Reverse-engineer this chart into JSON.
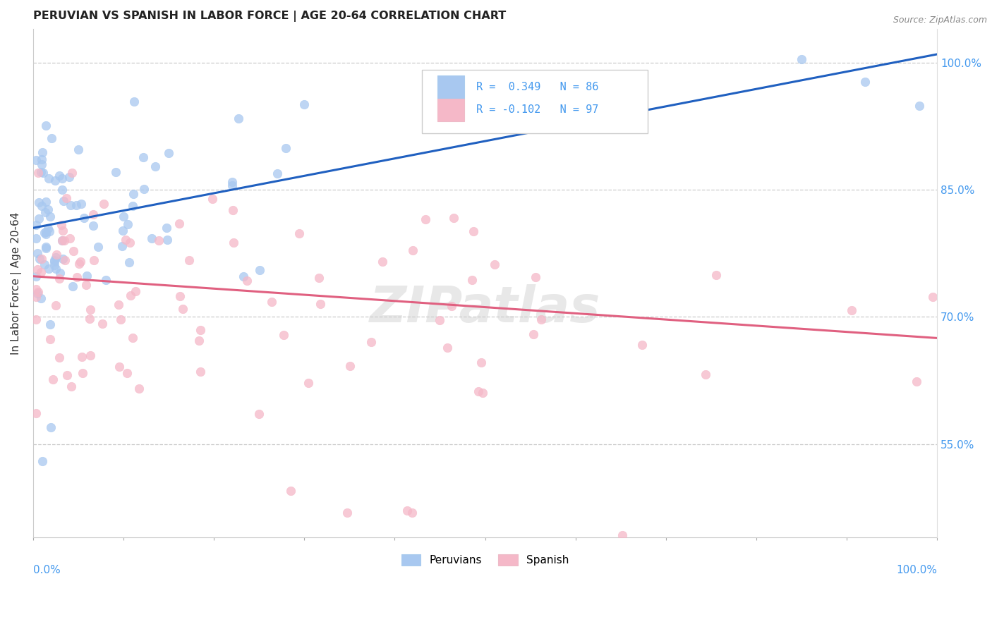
{
  "title": "PERUVIAN VS SPANISH IN LABOR FORCE | AGE 20-64 CORRELATION CHART",
  "source": "Source: ZipAtlas.com",
  "ylabel": "In Labor Force | Age 20-64",
  "ytick_labels": [
    "100.0%",
    "85.0%",
    "70.0%",
    "55.0%"
  ],
  "ytick_values": [
    1.0,
    0.85,
    0.7,
    0.55
  ],
  "xlim": [
    0.0,
    1.0
  ],
  "ylim": [
    0.44,
    1.04
  ],
  "peruvian_color": "#A8C8F0",
  "spanish_color": "#F5B8C8",
  "peruvian_line_color": "#2060C0",
  "spanish_line_color": "#E06080",
  "right_label_color": "#4499EE",
  "peruvian_trend_x": [
    0.0,
    1.0
  ],
  "peruvian_trend_y": [
    0.805,
    1.01
  ],
  "spanish_trend_x": [
    0.0,
    1.0
  ],
  "spanish_trend_y": [
    0.748,
    0.675
  ]
}
